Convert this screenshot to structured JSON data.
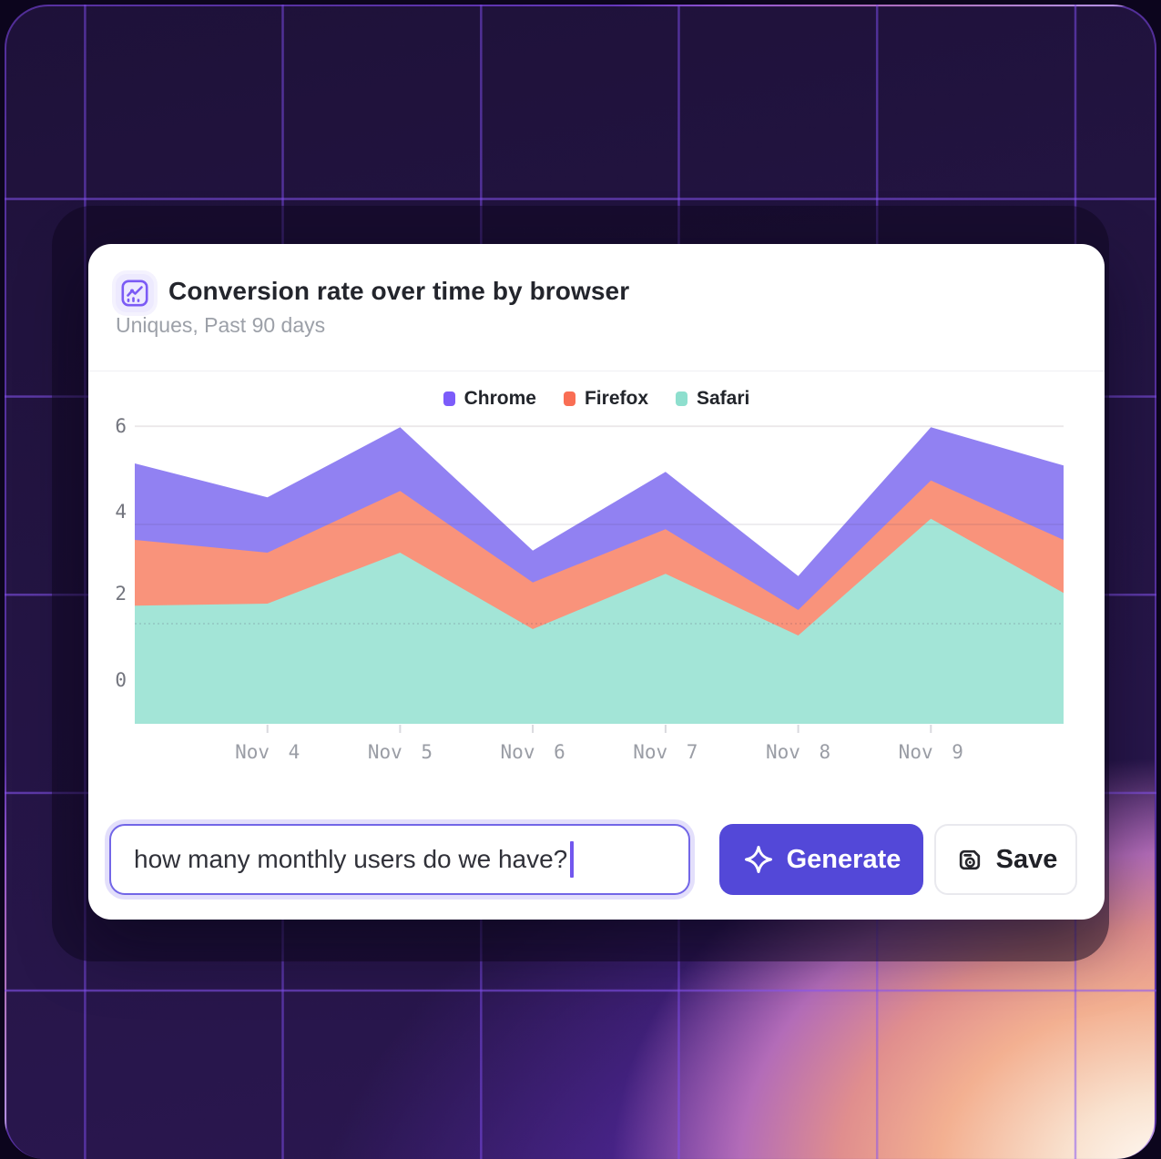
{
  "header": {
    "title": "Conversion rate over time by browser",
    "subtitle": "Uniques, Past 90 days",
    "title_icon": "combo-chart-icon"
  },
  "chart_data": {
    "type": "area",
    "title": "Conversion rate over time by browser",
    "subtitle": "Uniques, Past 90 days",
    "overlapping_areas": true,
    "legend_position": "top-center",
    "grid": true,
    "y_tick_labels": [
      "6",
      "4",
      "2",
      "0"
    ],
    "ylim": [
      -1.03,
      6
    ],
    "x_tick_labels": [
      "Nov 4",
      "Nov 5",
      "Nov 6",
      "Nov 7",
      "Nov 8",
      "Nov 9"
    ],
    "x_tick_point_indexes": [
      1,
      2,
      3,
      4,
      5,
      6
    ],
    "series": [
      {
        "name": "Chrome",
        "legend_color": "#7C5CFA",
        "area_color": "#9181F2",
        "values": [
          5.1,
          4.3,
          5.95,
          3.05,
          4.9,
          2.45,
          5.95,
          5.05
        ]
      },
      {
        "name": "Firefox",
        "legend_color": "#F96E54",
        "area_color": "#F9937B",
        "values": [
          3.3,
          3.0,
          4.45,
          2.3,
          3.55,
          1.65,
          4.7,
          3.3
        ]
      },
      {
        "name": "Safari",
        "legend_color": "#8EDFCE",
        "area_color": "#A3E5D7",
        "values": [
          1.75,
          1.8,
          3.0,
          1.2,
          2.5,
          1.05,
          3.8,
          2.05
        ]
      }
    ]
  },
  "prompt_bar": {
    "input_value": "how many monthly users do we have?",
    "generate_label": "Generate",
    "generate_icon": "sparkle-icon",
    "save_label": "Save",
    "save_icon": "save-icon"
  },
  "colors": {
    "accent": "#5348D8",
    "input_border": "#7266E7",
    "card_bg": "#ffffff",
    "bg_dark_purple": "#241544",
    "grid_line_purple": "#824FF4",
    "glow_warm": "#F3B091"
  }
}
